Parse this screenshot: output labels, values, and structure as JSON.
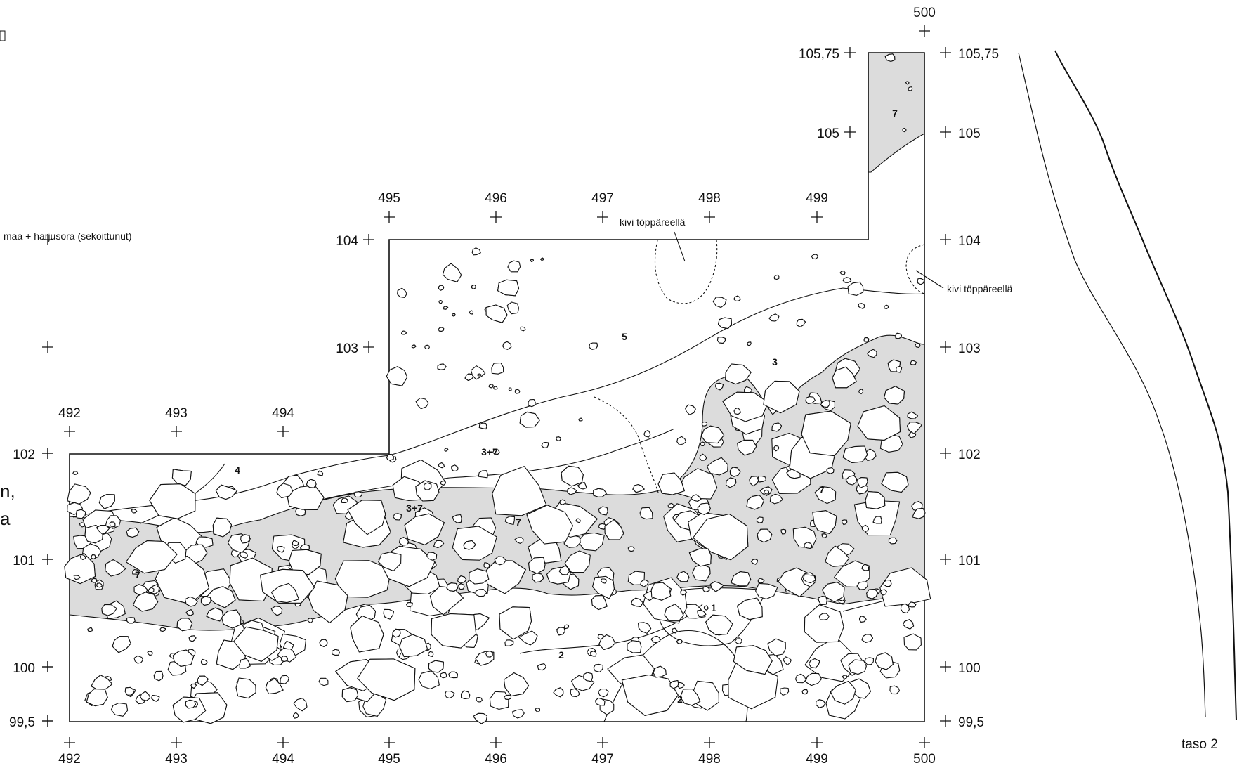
{
  "labels": {
    "legend_fragment": "maa + harjusora (sekoittunut)",
    "cut_text_1": "n,",
    "cut_text_2": "a",
    "stone_note_1": "kivi töppäreellä",
    "stone_note_2": "kivi töppäreellä",
    "profile_caption": "taso 2"
  },
  "grid": {
    "bottom_x": [
      "492",
      "493",
      "494",
      "495",
      "496",
      "497",
      "498",
      "499",
      "500"
    ],
    "mid_x": [
      "492",
      "493",
      "494"
    ],
    "upper_x": [
      "495",
      "496",
      "497",
      "498",
      "499"
    ],
    "top_x": "500",
    "left_y": [
      "99,5",
      "100",
      "101",
      "102",
      "103",
      "104",
      "105",
      "105,75"
    ],
    "right_y": [
      "99,5",
      "100",
      "101",
      "102",
      "103",
      "104",
      "105",
      "105,75"
    ]
  },
  "layers": [
    {
      "id": "7",
      "where": "top-strip"
    },
    {
      "id": "5",
      "where": "upper-area"
    },
    {
      "id": "3",
      "where": "mid-band"
    },
    {
      "id": "4",
      "where": "west"
    },
    {
      "id": "3+7",
      "where": "band-upper"
    },
    {
      "id": "3+7",
      "where": "band-lower"
    },
    {
      "id": "7",
      "where": "band-center"
    },
    {
      "id": "7",
      "where": "band-east"
    },
    {
      "id": "7",
      "where": "band-west"
    },
    {
      "id": "1",
      "where": "south"
    },
    {
      "id": "2",
      "where": "south-center"
    },
    {
      "id": "2",
      "where": "pit"
    }
  ],
  "colors": {
    "ink": "#111111",
    "fill_layer7": "#dcdcdc",
    "background": "#ffffff"
  }
}
